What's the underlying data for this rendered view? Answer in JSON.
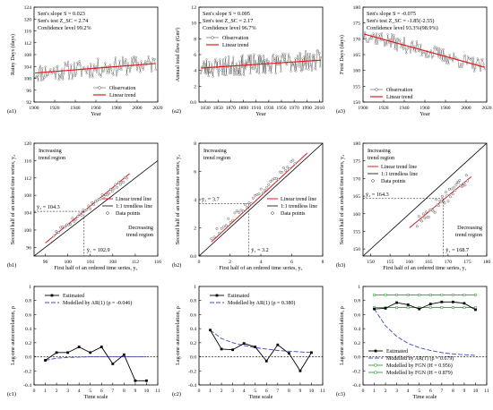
{
  "colors": {
    "observation": "#555555",
    "trend": "#e41a1c",
    "estimated": "#000000",
    "ar1": "#3b4cc0",
    "fgn": "#2ca02c",
    "reference": "#000000"
  },
  "chart_data": [
    {
      "panel": "(a1)",
      "type": "line",
      "xlabel": "Year",
      "ylabel": "Rainy Days (days)",
      "xlim": [
        1900,
        2020
      ],
      "ylim": [
        92,
        124
      ],
      "xticks": [
        1900,
        1920,
        1940,
        1960,
        1980,
        2000,
        2020
      ],
      "yticks": [
        92,
        96,
        100,
        104,
        108,
        112,
        116,
        120,
        124
      ],
      "annotations": [
        "Sen's slope   S = 0.023",
        "Sen's test    Z_SC = 2.74",
        "Confidence level 99.2%"
      ],
      "legend": [
        "Observation",
        "Linear trend"
      ],
      "legend_position": "bottom-right",
      "x_range": [
        1901,
        2018
      ],
      "noise": 3.2,
      "seed": 11,
      "series": [
        {
          "name": "Observation",
          "style": "markers-line"
        },
        {
          "name": "Linear trend",
          "x": [
            1901,
            2018
          ],
          "y": [
            101.8,
            105.0
          ]
        }
      ]
    },
    {
      "panel": "(a2)",
      "type": "line",
      "xlabel": "Year",
      "ylabel": "Annual total flow (Gm³)",
      "xlim": [
        1820,
        2015
      ],
      "ylim": [
        0,
        12
      ],
      "xticks": [
        1830,
        1850,
        1870,
        1890,
        1910,
        1930,
        1950,
        1970,
        1990,
        2010
      ],
      "yticks": [
        0,
        2,
        4,
        6,
        8,
        10,
        12
      ],
      "annotations": [
        "Sen's slope   S = 0.005",
        "Sen's test    Z_SC = 2.17",
        "Confidence level 96.7%"
      ],
      "legend": [
        "Observation",
        "Linear trend"
      ],
      "legend_position": "top-left",
      "x_range": [
        1823,
        2012
      ],
      "noise": 1.3,
      "seed": 23,
      "series": [
        {
          "name": "Observation",
          "style": "markers-line"
        },
        {
          "name": "Linear trend",
          "x": [
            1823,
            2012
          ],
          "y": [
            4.3,
            5.3
          ]
        }
      ]
    },
    {
      "panel": "(a3)",
      "type": "line",
      "xlabel": "Year",
      "ylabel": "Frost Days (days)",
      "xlim": [
        1900,
        2020
      ],
      "ylim": [
        150,
        180
      ],
      "xticks": [
        1900,
        1920,
        1940,
        1960,
        1980,
        2000,
        2020
      ],
      "yticks": [
        150,
        155,
        160,
        165,
        170,
        175,
        180
      ],
      "annotations": [
        "Sen's slope   S = -0.075",
        "Sen's test    Z_SC = -1.85(-2.55)",
        "Confidence level 93.3%(98.9%)"
      ],
      "legend": [
        "Observation",
        "Linear trend"
      ],
      "legend_position": "bottom-left",
      "x_range": [
        1901,
        2018
      ],
      "noise": 2.4,
      "seed": 37,
      "series": [
        {
          "name": "Observation",
          "style": "markers-line"
        },
        {
          "name": "Linear trend",
          "x": [
            1901,
            2018
          ],
          "y": [
            171.5,
            161.0
          ]
        }
      ]
    },
    {
      "panel": "(b1)",
      "type": "scatter",
      "xlabel": "First half of an ordered time series, y₁",
      "ylabel": "Second half of an ordered time series, y₂",
      "xlim": [
        94,
        116
      ],
      "ylim": [
        94,
        120
      ],
      "xticks": [
        96,
        100,
        104,
        108,
        112,
        116
      ],
      "yticks": [
        96,
        100,
        104,
        108,
        112,
        116,
        120
      ],
      "annotations": [
        "Increasing trend region",
        "Decreasing trend region",
        "ȳ₂ = 104.3",
        "ȳ₁ = 102.9"
      ],
      "mean_x": 102.9,
      "mean_y": 104.3,
      "legend": [
        "Linear trend line",
        "1:1 trendless line",
        "Data points"
      ],
      "legend_position": "right",
      "data_range": [
        97.5,
        110.5
      ],
      "offset": 1.4,
      "seed": 5,
      "series": [
        {
          "name": "Linear trend line",
          "x": [
            96,
            111
          ],
          "y": [
            97.0,
            113.0
          ]
        },
        {
          "name": "1:1 trendless line",
          "x": [
            94,
            116
          ],
          "y": [
            94,
            116
          ]
        },
        {
          "name": "Data points"
        }
      ]
    },
    {
      "panel": "(b2)",
      "type": "scatter",
      "xlabel": "First half of an ordered time series, y₁",
      "ylabel": "Second half of an ordered time series, y₂",
      "xlim": [
        0,
        8
      ],
      "ylim": [
        0,
        8
      ],
      "xticks": [
        0,
        2,
        4,
        6,
        8
      ],
      "yticks": [
        0,
        2,
        4,
        6,
        8
      ],
      "annotations": [
        "Increasing trend region",
        "ȳ₂ = 3.7",
        "ȳ₁ = 3.2"
      ],
      "mean_x": 3.2,
      "mean_y": 3.7,
      "legend": [
        "Linear trend line",
        "1:1 trendless line",
        "Data points"
      ],
      "legend_position": "right",
      "data_range": [
        0.8,
        6.2
      ],
      "offset": 0.55,
      "seed": 9,
      "series": [
        {
          "name": "Linear trend line",
          "x": [
            0.8,
            7.0
          ],
          "y": [
            1.0,
            7.3
          ]
        },
        {
          "name": "1:1 trendless line",
          "x": [
            0,
            8
          ],
          "y": [
            0,
            8
          ]
        },
        {
          "name": "Data points"
        }
      ]
    },
    {
      "panel": "(b3)",
      "type": "scatter",
      "xlabel": "First half of an ordered time series, y₁",
      "ylabel": "Second half of an ordered time series, y₂",
      "xlim": [
        148,
        180
      ],
      "ylim": [
        148,
        180
      ],
      "xticks": [
        150,
        155,
        160,
        165,
        170,
        175,
        180
      ],
      "yticks": [
        150,
        155,
        160,
        165,
        170,
        175,
        180
      ],
      "annotations": [
        "Increasing trend region",
        "Decreasing trend region",
        "ȳ₂ = 164.3",
        "ȳ₁ = 168.7"
      ],
      "mean_x": 168.7,
      "mean_y": 164.3,
      "legend": [
        "Linear trend line",
        "1:1 trendless line",
        "Data points"
      ],
      "legend_position": "top-left",
      "data_range": [
        162,
        175
      ],
      "offset": -4.5,
      "seed": 17,
      "series": [
        {
          "name": "Linear trend line",
          "x": [
            160,
            176
          ],
          "y": [
            156.0,
            170.5
          ]
        },
        {
          "name": "1:1 trendless line",
          "x": [
            148,
            180
          ],
          "y": [
            148,
            180
          ]
        },
        {
          "name": "Data points"
        }
      ]
    },
    {
      "panel": "(c1)",
      "type": "line",
      "xlabel": "Time scale",
      "ylabel": "Lag-one autocorrelation, ρ",
      "xlim": [
        0,
        11
      ],
      "ylim": [
        -0.4,
        1.0
      ],
      "xticks": [
        0,
        1,
        2,
        3,
        4,
        5,
        6,
        7,
        8,
        9,
        10,
        11
      ],
      "yticks": [
        -0.4,
        -0.2,
        0.0,
        0.2,
        0.4,
        0.6,
        0.8,
        1.0
      ],
      "legend": [
        "Estimated",
        "Modelled by AR(1) (ρ = -0.046)"
      ],
      "legend_position": "top",
      "series": [
        {
          "name": "Estimated",
          "x": [
            1,
            2,
            3,
            4,
            5,
            6,
            7,
            8,
            9,
            10
          ],
          "y": [
            -0.05,
            0.06,
            0.06,
            0.14,
            0.06,
            0.14,
            -0.1,
            0.03,
            -0.34,
            -0.34
          ]
        },
        {
          "name": "Modelled by AR(1) (ρ = -0.046)",
          "x": [
            1,
            2,
            3,
            4,
            5,
            6,
            7,
            8,
            9,
            10
          ],
          "y": [
            -0.05,
            -0.02,
            -0.01,
            -0.005,
            0,
            0,
            0,
            0,
            0,
            0
          ]
        }
      ]
    },
    {
      "panel": "(c2)",
      "type": "line",
      "xlabel": "Time scale",
      "ylabel": "Lag-one autocorrelation, ρ",
      "xlim": [
        0,
        11
      ],
      "ylim": [
        -0.4,
        1.0
      ],
      "xticks": [
        0,
        1,
        2,
        3,
        4,
        5,
        6,
        7,
        8,
        9,
        10,
        11
      ],
      "yticks": [
        -0.4,
        -0.2,
        0.0,
        0.2,
        0.4,
        0.6,
        0.8,
        1.0
      ],
      "legend": [
        "Estimated",
        "Modelled by AR(1) (ρ = 0.380)"
      ],
      "legend_position": "top",
      "series": [
        {
          "name": "Estimated",
          "x": [
            1,
            2,
            3,
            4,
            5,
            6,
            7,
            8,
            9,
            10
          ],
          "y": [
            0.38,
            0.11,
            0.1,
            0.19,
            0.14,
            -0.06,
            0.17,
            0.05,
            -0.2,
            0.06
          ]
        },
        {
          "name": "Modelled by AR(1) (ρ = 0.380)",
          "x": [
            1,
            2,
            3,
            4,
            5,
            6,
            7,
            8,
            9,
            10
          ],
          "y": [
            0.38,
            0.26,
            0.2,
            0.16,
            0.13,
            0.11,
            0.09,
            0.08,
            0.07,
            0.06
          ]
        }
      ]
    },
    {
      "panel": "(c3)",
      "type": "line",
      "xlabel": "Time scale",
      "ylabel": "Lag-one autocorrelation, ρ",
      "xlim": [
        0,
        11
      ],
      "ylim": [
        -0.4,
        1.0
      ],
      "xticks": [
        0,
        1,
        2,
        3,
        4,
        5,
        6,
        7,
        8,
        9,
        10,
        11
      ],
      "yticks": [
        -0.4,
        -0.2,
        0.0,
        0.2,
        0.4,
        0.6,
        0.8,
        1.0
      ],
      "legend": [
        "Estimated",
        "Modelled by AR(1) (ρ = 0.679)",
        "Modelled by FGN (H = 0.956)",
        "Modelled by FGN (H = 0.879)"
      ],
      "legend_position": "bottom",
      "series": [
        {
          "name": "Estimated",
          "x": [
            1,
            2,
            3,
            4,
            5,
            6,
            7,
            8,
            9,
            10
          ],
          "y": [
            0.68,
            0.69,
            0.77,
            0.74,
            0.68,
            0.75,
            0.78,
            0.78,
            0.76,
            0.67
          ]
        },
        {
          "name": "Modelled by AR(1) (ρ = 0.679)",
          "x": [
            1,
            2,
            3,
            4,
            5,
            6,
            7,
            8,
            9,
            10
          ],
          "y": [
            0.68,
            0.44,
            0.29,
            0.19,
            0.13,
            0.09,
            0.06,
            0.04,
            0.03,
            0.02
          ]
        },
        {
          "name": "Modelled by FGN (H = 0.956)",
          "x": [
            1,
            2,
            3,
            4,
            5,
            6,
            7,
            8,
            9,
            10
          ],
          "y": [
            0.88,
            0.88,
            0.88,
            0.88,
            0.88,
            0.88,
            0.88,
            0.88,
            0.88,
            0.88
          ]
        },
        {
          "name": "Modelled by FGN (H = 0.879)",
          "x": [
            1,
            2,
            3,
            4,
            5,
            6,
            7,
            8,
            9,
            10
          ],
          "y": [
            0.7,
            0.7,
            0.7,
            0.7,
            0.7,
            0.7,
            0.7,
            0.7,
            0.7,
            0.7
          ]
        }
      ]
    }
  ]
}
